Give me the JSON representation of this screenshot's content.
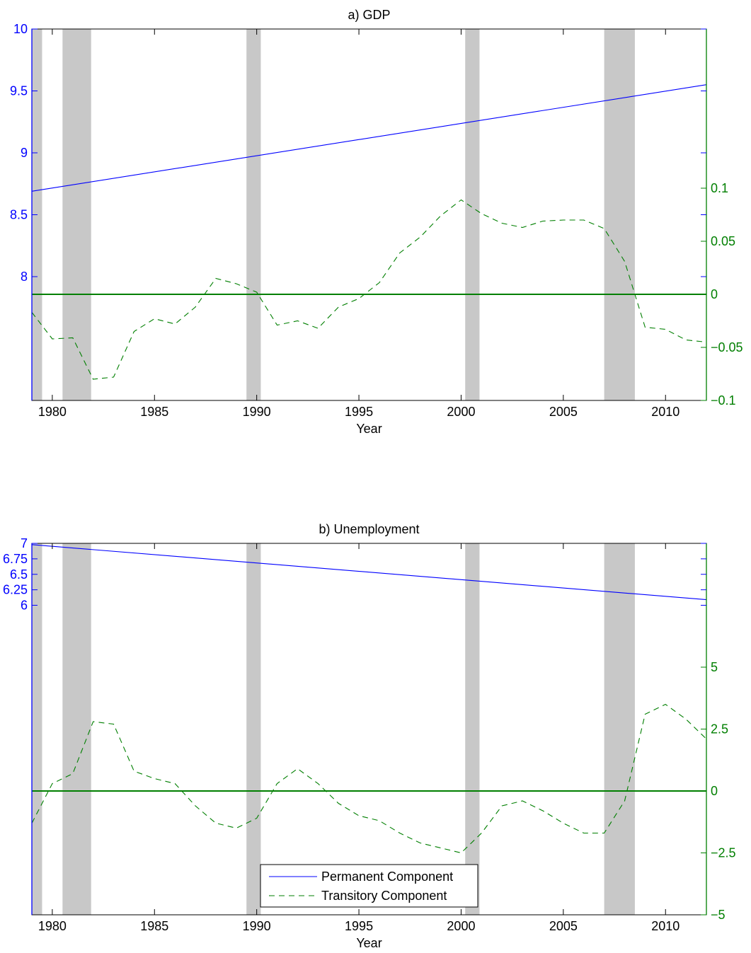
{
  "chart_data": [
    {
      "type": "line",
      "title": "a) GDP",
      "xlabel": "Year",
      "xlim": [
        1979,
        2012
      ],
      "xticks": [
        1980,
        1985,
        1990,
        1995,
        2000,
        2005,
        2010
      ],
      "left_axis": {
        "ylim": [
          7,
          10
        ],
        "ticks": [
          8,
          8.5,
          9,
          9.5,
          10
        ],
        "tick_labels": [
          "8",
          "8.5",
          "9",
          "9.5",
          "10"
        ],
        "color": "#0000ff"
      },
      "right_axis": {
        "ylim": [
          -0.1,
          0.25
        ],
        "ticks": [
          -0.1,
          -0.05,
          0,
          0.05,
          0.1
        ],
        "tick_labels": [
          "−0.1",
          "−0.05",
          "0",
          "0.05",
          "0.1"
        ],
        "color": "#007f00"
      },
      "recessions": [
        [
          1979,
          1979.5
        ],
        [
          1980.5,
          1981.9
        ],
        [
          1989.5,
          1990.2
        ],
        [
          2000.2,
          2000.9
        ],
        [
          2007,
          2008.5
        ]
      ],
      "series": [
        {
          "name": "Permanent Component",
          "axis": "left",
          "style": "solid",
          "color": "#0000ff",
          "x": [
            1979,
            2012
          ],
          "values": [
            8.69,
            9.55
          ]
        },
        {
          "name": "Transitory Component",
          "axis": "right",
          "style": "dashed",
          "color": "#007f00",
          "x": [
            1979,
            1980,
            1981,
            1982,
            1983,
            1984,
            1985,
            1986,
            1987,
            1988,
            1989,
            1990,
            1991,
            1992,
            1993,
            1994,
            1995,
            1996,
            1997,
            1998,
            1999,
            2000,
            2001,
            2002,
            2003,
            2004,
            2005,
            2006,
            2007,
            2008,
            2009,
            2010,
            2011,
            2012
          ],
          "values": [
            -0.017,
            -0.042,
            -0.041,
            -0.08,
            -0.078,
            -0.035,
            -0.023,
            -0.028,
            -0.012,
            0.015,
            0.01,
            0.002,
            -0.029,
            -0.025,
            -0.032,
            -0.012,
            -0.004,
            0.011,
            0.039,
            0.054,
            0.074,
            0.089,
            0.076,
            0.067,
            0.063,
            0.069,
            0.07,
            0.07,
            0.062,
            0.031,
            -0.031,
            -0.033,
            -0.043,
            -0.045
          ]
        }
      ]
    },
    {
      "type": "line",
      "title": "b) Unemployment",
      "xlabel": "Year",
      "xlim": [
        1979,
        2012
      ],
      "xticks": [
        1980,
        1985,
        1990,
        1995,
        2000,
        2005,
        2010
      ],
      "left_axis": {
        "ylim": [
          1,
          7
        ],
        "ticks": [
          6,
          6.25,
          6.5,
          6.75,
          7
        ],
        "tick_labels": [
          "6",
          "6.25",
          "6.5",
          "6.75",
          "7"
        ],
        "color": "#0000ff"
      },
      "right_axis": {
        "ylim": [
          -5,
          10
        ],
        "ticks": [
          -5,
          -2.5,
          0,
          2.5,
          5
        ],
        "tick_labels": [
          "−5",
          "−2.5",
          "0",
          "2.5",
          "5"
        ],
        "color": "#007f00"
      },
      "recessions": [
        [
          1979,
          1979.5
        ],
        [
          1980.5,
          1981.9
        ],
        [
          1989.5,
          1990.2
        ],
        [
          2000.2,
          2000.9
        ],
        [
          2007,
          2008.5
        ]
      ],
      "series": [
        {
          "name": "Permanent Component",
          "axis": "left",
          "style": "solid",
          "color": "#0000ff",
          "x": [
            1979,
            2012
          ],
          "values": [
            6.98,
            6.09
          ]
        },
        {
          "name": "Transitory Component",
          "axis": "right",
          "style": "dashed",
          "color": "#007f00",
          "x": [
            1979,
            1980,
            1981,
            1982,
            1983,
            1984,
            1985,
            1986,
            1987,
            1988,
            1989,
            1990,
            1991,
            1992,
            1993,
            1994,
            1995,
            1996,
            1997,
            1998,
            1999,
            2000,
            2001,
            2002,
            2003,
            2004,
            2005,
            2006,
            2007,
            2008,
            2009,
            2010,
            2011,
            2012
          ],
          "values": [
            -1.3,
            0.3,
            0.7,
            2.8,
            2.7,
            0.8,
            0.5,
            0.3,
            -0.6,
            -1.3,
            -1.5,
            -1.1,
            0.3,
            0.9,
            0.3,
            -0.5,
            -1.0,
            -1.2,
            -1.7,
            -2.1,
            -2.3,
            -2.5,
            -1.7,
            -0.6,
            -0.4,
            -0.8,
            -1.3,
            -1.7,
            -1.7,
            -0.4,
            3.1,
            3.5,
            2.9,
            2.1
          ]
        }
      ],
      "legend": {
        "placement": "bottom-center",
        "entries": [
          "Permanent Component",
          "Transitory Component"
        ]
      }
    }
  ]
}
